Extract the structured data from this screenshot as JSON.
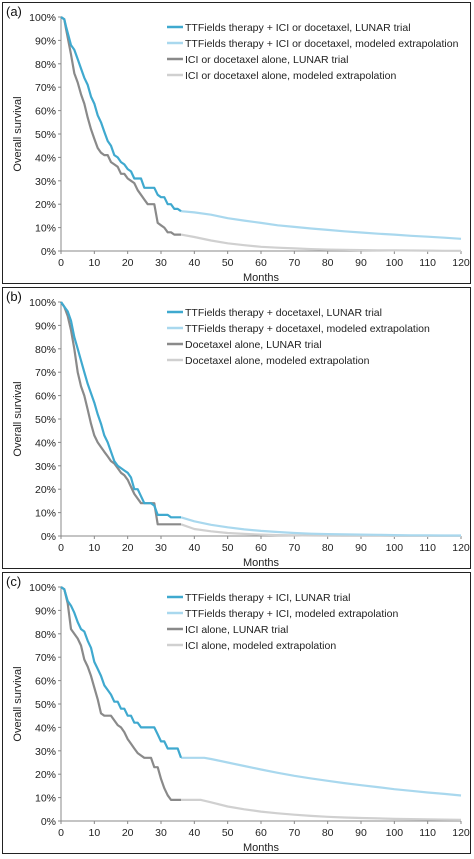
{
  "colors": {
    "ttf_trial": "#3fa9cf",
    "ttf_extrap": "#a9d8ee",
    "ctl_trial": "#8a8a8a",
    "ctl_extrap": "#d0d0d0"
  },
  "chart_data": [
    {
      "type": "line",
      "panel_label": "(a)",
      "xlabel": "Months",
      "ylabel": "Overall survival",
      "xlim": [
        0,
        120
      ],
      "ylim": [
        0,
        100
      ],
      "x_ticks": [
        0,
        10,
        20,
        30,
        40,
        50,
        60,
        70,
        80,
        90,
        100,
        110,
        120
      ],
      "y_ticks": [
        "0%",
        "10%",
        "20%",
        "30%",
        "40%",
        "50%",
        "60%",
        "70%",
        "80%",
        "90%",
        "100%"
      ],
      "legend_position": "top-right",
      "series": [
        {
          "name": "TTFields therapy + ICI or docetaxel, LUNAR trial",
          "color_key": "ttf_trial",
          "x": [
            0,
            1,
            1.5,
            3,
            4,
            5,
            6,
            7,
            8,
            9,
            10,
            11,
            12,
            13,
            14,
            15,
            16,
            17,
            18,
            19,
            20,
            21,
            22,
            23,
            24,
            25,
            26,
            27,
            28,
            29,
            30,
            31,
            32,
            33,
            34,
            35,
            36
          ],
          "y": [
            100,
            99,
            96,
            88,
            86,
            82,
            78,
            74,
            71,
            66,
            63,
            58,
            55,
            51,
            47,
            45,
            41,
            40,
            38,
            37,
            35,
            34,
            31,
            31,
            31,
            27,
            27,
            27,
            27,
            24,
            23,
            23,
            20,
            20,
            18,
            18,
            17
          ]
        },
        {
          "name": "TTFields therapy + ICI or docetaxel, modeled extrapolation",
          "color_key": "ttf_extrap",
          "x": [
            36,
            40,
            45,
            50,
            55,
            60,
            65,
            70,
            75,
            80,
            85,
            90,
            95,
            100,
            105,
            110,
            115,
            120
          ],
          "y": [
            17,
            16.5,
            15.5,
            14,
            13,
            12,
            11,
            10.3,
            9.6,
            9,
            8.4,
            7.9,
            7.4,
            7,
            6.5,
            6.1,
            5.7,
            5.2
          ]
        },
        {
          "name": "ICI or docetaxel alone, LUNAR trial",
          "color_key": "ctl_trial",
          "x": [
            0,
            1,
            1.5,
            3,
            4,
            5,
            6,
            7,
            8,
            9,
            10,
            11,
            12,
            13,
            14,
            15,
            16,
            17,
            18,
            19,
            20,
            21,
            22,
            23,
            24,
            25,
            26,
            27,
            28,
            29,
            30,
            31,
            32,
            33,
            34,
            35,
            36
          ],
          "y": [
            100,
            99,
            95,
            84,
            76,
            72,
            67,
            63,
            57,
            52,
            48,
            44,
            42,
            41,
            41,
            38,
            37,
            36,
            33,
            33,
            31,
            30,
            29,
            26,
            24,
            22,
            20,
            20,
            20,
            12,
            11,
            10,
            8,
            8,
            7,
            7,
            7
          ]
        },
        {
          "name": "ICI or docetaxel alone, modeled extrapolation",
          "color_key": "ctl_extrap",
          "x": [
            36,
            40,
            45,
            50,
            55,
            60,
            65,
            70,
            75,
            80,
            85,
            90,
            95,
            100,
            105,
            110,
            115,
            120
          ],
          "y": [
            7,
            6,
            4.5,
            3.3,
            2.5,
            1.8,
            1.4,
            1.1,
            0.8,
            0.6,
            0.5,
            0.4,
            0.3,
            0.25,
            0.2,
            0.15,
            0.1,
            0.1
          ]
        }
      ]
    },
    {
      "type": "line",
      "panel_label": "(b)",
      "xlabel": "Months",
      "ylabel": "Overall survival",
      "xlim": [
        0,
        120
      ],
      "ylim": [
        0,
        100
      ],
      "x_ticks": [
        0,
        10,
        20,
        30,
        40,
        50,
        60,
        70,
        80,
        90,
        100,
        110,
        120
      ],
      "y_ticks": [
        "0%",
        "10%",
        "20%",
        "30%",
        "40%",
        "50%",
        "60%",
        "70%",
        "80%",
        "90%",
        "100%"
      ],
      "legend_position": "top-right",
      "series": [
        {
          "name": "TTFields therapy + docetaxel, LUNAR trial",
          "color_key": "ttf_trial",
          "x": [
            0,
            1,
            2,
            3,
            4,
            5,
            6,
            7,
            8,
            9,
            10,
            11,
            12,
            13,
            14,
            15,
            16,
            17,
            18,
            19,
            20,
            21,
            22,
            23,
            24,
            25,
            26,
            27,
            28,
            29,
            30,
            31,
            32,
            33,
            34,
            35,
            36
          ],
          "y": [
            100,
            98,
            96,
            92,
            85,
            80,
            75,
            70,
            65,
            61,
            57,
            52,
            48,
            43,
            40,
            36,
            32,
            30,
            29,
            28,
            27,
            25,
            20,
            20,
            17,
            14,
            14,
            14,
            13,
            9,
            9,
            9,
            9,
            8,
            8,
            8,
            8
          ]
        },
        {
          "name": "TTFields therapy + docetaxel, modeled extrapolation",
          "color_key": "ttf_extrap",
          "x": [
            36,
            40,
            45,
            50,
            55,
            60,
            65,
            70,
            75,
            80,
            85,
            90,
            95,
            100,
            105,
            110,
            115,
            120
          ],
          "y": [
            8,
            6.3,
            4.8,
            3.7,
            2.8,
            2.2,
            1.7,
            1.3,
            1,
            0.8,
            0.7,
            0.6,
            0.5,
            0.4,
            0.3,
            0.3,
            0.2,
            0.2
          ]
        },
        {
          "name": "Docetaxel alone, LUNAR trial",
          "color_key": "ctl_trial",
          "x": [
            0,
            1,
            2,
            3,
            4,
            5,
            6,
            7,
            8,
            9,
            10,
            11,
            12,
            13,
            14,
            15,
            16,
            17,
            18,
            19,
            20,
            21,
            22,
            23,
            24,
            25,
            26,
            27,
            28,
            29,
            30,
            31,
            32,
            33,
            34,
            35,
            36
          ],
          "y": [
            100,
            98,
            94,
            88,
            80,
            70,
            64,
            60,
            54,
            48,
            43,
            40,
            38,
            36,
            34,
            32,
            31,
            29,
            27,
            26,
            24,
            21,
            18,
            16,
            14,
            14,
            14,
            14,
            14,
            5,
            5,
            5,
            5,
            5,
            5,
            5,
            5
          ]
        },
        {
          "name": "Docetaxel alone, modeled extrapolation",
          "color_key": "ctl_extrap",
          "x": [
            36,
            40,
            45,
            50,
            55,
            60,
            65,
            70,
            75,
            80,
            85,
            90,
            95,
            100,
            105,
            110,
            115,
            120
          ],
          "y": [
            5,
            3,
            2,
            1.3,
            0.9,
            0.6,
            0.4,
            0.3,
            0.2,
            0.15,
            0.1,
            0.1,
            0.1,
            0.05,
            0.05,
            0.05,
            0.05,
            0.05
          ]
        }
      ]
    },
    {
      "type": "line",
      "panel_label": "(c)",
      "xlabel": "Months",
      "ylabel": "Overall survival",
      "xlim": [
        0,
        120
      ],
      "ylim": [
        0,
        100
      ],
      "x_ticks": [
        0,
        10,
        20,
        30,
        40,
        50,
        60,
        70,
        80,
        90,
        100,
        110,
        120
      ],
      "y_ticks": [
        "0%",
        "10%",
        "20%",
        "30%",
        "40%",
        "50%",
        "60%",
        "70%",
        "80%",
        "90%",
        "100%"
      ],
      "legend_position": "top-right",
      "series": [
        {
          "name": "TTFields therapy + ICI, LUNAR trial",
          "color_key": "ttf_trial",
          "x": [
            0,
            1,
            2,
            3,
            4,
            5,
            6,
            7,
            8,
            9,
            10,
            11,
            12,
            13,
            14,
            15,
            16,
            17,
            18,
            19,
            20,
            21,
            22,
            23,
            24,
            25,
            26,
            27,
            28,
            29,
            30,
            31,
            32,
            33,
            34,
            35,
            36
          ],
          "y": [
            100,
            99,
            94,
            92,
            89,
            85,
            82,
            81,
            77,
            74,
            68,
            65,
            62,
            58,
            56,
            54,
            51,
            51,
            48,
            48,
            45,
            45,
            42,
            42,
            40,
            40,
            40,
            40,
            40,
            37,
            34,
            34,
            31,
            31,
            31,
            31,
            27
          ]
        },
        {
          "name": "TTFields therapy + ICI, modeled extrapolation",
          "color_key": "ttf_extrap",
          "x": [
            36,
            40,
            43,
            45,
            50,
            55,
            60,
            65,
            70,
            75,
            80,
            85,
            90,
            95,
            100,
            105,
            110,
            115,
            120
          ],
          "y": [
            27,
            27,
            27,
            26.5,
            25,
            23.5,
            22,
            20.6,
            19.3,
            18.2,
            17.2,
            16.2,
            15.3,
            14.5,
            13.6,
            12.9,
            12.2,
            11.6,
            10.9
          ]
        },
        {
          "name": "ICI alone, LUNAR trial",
          "color_key": "ctl_trial",
          "x": [
            0,
            1,
            2,
            3,
            4,
            5,
            6,
            7,
            8,
            9,
            10,
            11,
            12,
            13,
            14,
            15,
            16,
            17,
            18,
            19,
            20,
            21,
            22,
            23,
            24,
            25,
            26,
            27,
            28,
            29,
            30,
            31,
            32,
            33,
            34,
            35,
            36
          ],
          "y": [
            100,
            99,
            93,
            82,
            80,
            78,
            75,
            69,
            66,
            62,
            57,
            52,
            46,
            45,
            45,
            45,
            43,
            41,
            40,
            38,
            35,
            33,
            31,
            29,
            28,
            27,
            27,
            27,
            23,
            23,
            18,
            14,
            11,
            9,
            9,
            9,
            9
          ]
        },
        {
          "name": "ICI alone, modeled extrapolation",
          "color_key": "ctl_extrap",
          "x": [
            36,
            40,
            42,
            45,
            50,
            55,
            60,
            65,
            70,
            75,
            80,
            85,
            90,
            95,
            100,
            105,
            110,
            115,
            120
          ],
          "y": [
            9,
            9,
            9,
            8,
            6.2,
            5,
            4,
            3.3,
            2.7,
            2.2,
            1.8,
            1.5,
            1.3,
            1.1,
            0.9,
            0.8,
            0.7,
            0.6,
            0.5
          ]
        }
      ]
    }
  ]
}
